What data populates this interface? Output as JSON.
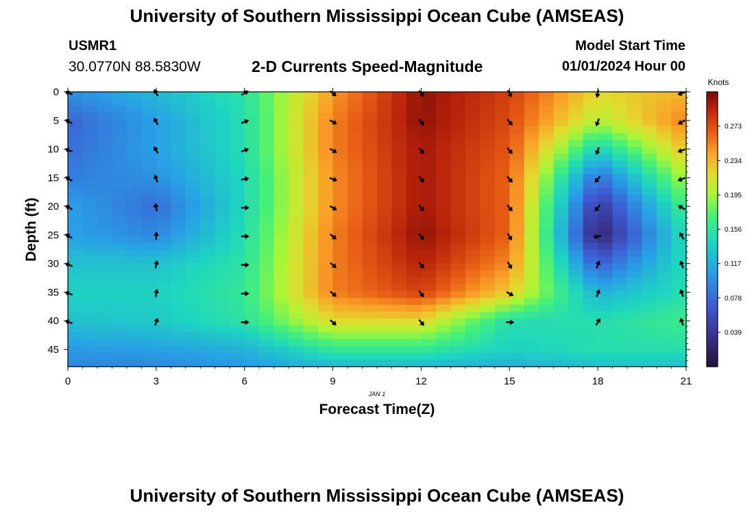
{
  "header": {
    "title": "University of Southern Mississippi Ocean Cube (AMSEAS)",
    "station_id": "USMR1",
    "coordinates": "30.0770N  88.5830W",
    "plot_title": "2-D Currents Speed-Magnitude",
    "start_label": "Model Start Time",
    "start_time": "01/01/2024 Hour 00"
  },
  "footer": {
    "title": "University of Southern Mississippi Ocean Cube (AMSEAS)"
  },
  "chart_data": {
    "type": "heatmap",
    "title": "2-D Currents Speed-Magnitude",
    "xlabel": "Forecast Time(Z)",
    "ylabel": "Depth (ft)",
    "date_label": "JAN 1",
    "xlim": [
      0,
      21
    ],
    "ylim": [
      48,
      0
    ],
    "x_ticks": [
      0,
      3,
      6,
      9,
      12,
      15,
      18,
      21
    ],
    "y_ticks": [
      0,
      5,
      10,
      15,
      20,
      25,
      30,
      35,
      40,
      45
    ],
    "colorbar": {
      "label": "Knots",
      "min": 0.0,
      "max": 0.312,
      "ticks": [
        0.039,
        0.078,
        0.117,
        0.156,
        0.195,
        0.234,
        0.273
      ]
    },
    "times": [
      0,
      3,
      6,
      9,
      12,
      15,
      18,
      21
    ],
    "depths": [
      0,
      5,
      10,
      15,
      20,
      25,
      30,
      35,
      40,
      45,
      48
    ],
    "speed_knots": [
      [
        0.1,
        0.125,
        0.155,
        0.245,
        0.305,
        0.28,
        0.22,
        0.235
      ],
      [
        0.075,
        0.11,
        0.15,
        0.255,
        0.305,
        0.275,
        0.2,
        0.255
      ],
      [
        0.08,
        0.11,
        0.15,
        0.255,
        0.3,
        0.27,
        0.14,
        0.23
      ],
      [
        0.09,
        0.1,
        0.145,
        0.25,
        0.3,
        0.265,
        0.08,
        0.2
      ],
      [
        0.11,
        0.08,
        0.145,
        0.25,
        0.3,
        0.265,
        0.04,
        0.17
      ],
      [
        0.11,
        0.095,
        0.15,
        0.255,
        0.305,
        0.265,
        0.02,
        0.15
      ],
      [
        0.13,
        0.13,
        0.155,
        0.255,
        0.295,
        0.25,
        0.07,
        0.15
      ],
      [
        0.14,
        0.14,
        0.16,
        0.255,
        0.28,
        0.225,
        0.12,
        0.15
      ],
      [
        0.13,
        0.135,
        0.155,
        0.22,
        0.22,
        0.15,
        0.15,
        0.165
      ],
      [
        0.105,
        0.11,
        0.12,
        0.16,
        0.16,
        0.14,
        0.15,
        0.15
      ],
      [
        0.095,
        0.095,
        0.105,
        0.125,
        0.125,
        0.12,
        0.13,
        0.13
      ]
    ],
    "vectors": [
      {
        "t": 0,
        "dirs": [
          290,
          300,
          290,
          300,
          300,
          300,
          290,
          290,
          290
        ]
      },
      {
        "t": 3,
        "dirs": [
          330,
          330,
          330,
          340,
          350,
          0,
          10,
          10,
          20
        ]
      },
      {
        "t": 6,
        "dirs": [
          60,
          70,
          70,
          80,
          90,
          90,
          90,
          90,
          90
        ]
      },
      {
        "t": 9,
        "dirs": [
          130,
          120,
          120,
          110,
          120,
          130,
          130,
          130,
          130
        ]
      },
      {
        "t": 12,
        "dirs": [
          140,
          140,
          140,
          140,
          140,
          140,
          140,
          140,
          140
        ]
      },
      {
        "t": 15,
        "dirs": [
          150,
          140,
          140,
          140,
          140,
          150,
          150,
          120,
          90
        ]
      },
      {
        "t": 18,
        "dirs": [
          190,
          200,
          200,
          220,
          220,
          260,
          20,
          20,
          30
        ]
      },
      {
        "t": 21,
        "dirs": [
          250,
          240,
          250,
          250,
          300,
          330,
          340,
          340,
          340
        ]
      }
    ]
  }
}
